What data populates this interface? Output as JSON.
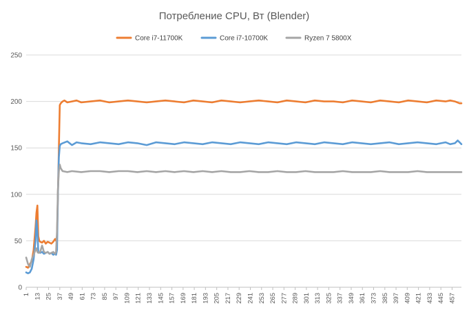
{
  "chart_data": {
    "type": "line",
    "title": "Потребление CPU, Вт (Blender)",
    "xlabel": "",
    "ylabel": "",
    "ylim": [
      0,
      250
    ],
    "yticks": [
      "0",
      "50",
      "100",
      "150",
      "200",
      "250"
    ],
    "xlim": [
      1,
      467
    ],
    "xticks": [
      "1",
      "13",
      "25",
      "37",
      "49",
      "61",
      "73",
      "85",
      "97",
      "109",
      "121",
      "133",
      "145",
      "157",
      "169",
      "181",
      "193",
      "205",
      "217",
      "229",
      "241",
      "253",
      "265",
      "277",
      "289",
      "301",
      "313",
      "325",
      "337",
      "349",
      "361",
      "373",
      "385",
      "397",
      "409",
      "421",
      "433",
      "445",
      "457"
    ],
    "grid": "horizontal",
    "legend_position": "top",
    "series": [
      {
        "name": "Core i7-11700K",
        "color": "#ed7d31",
        "points": [
          [
            1,
            22
          ],
          [
            3,
            21
          ],
          [
            5,
            25
          ],
          [
            7,
            28
          ],
          [
            9,
            40
          ],
          [
            11,
            65
          ],
          [
            12,
            80
          ],
          [
            13,
            88
          ],
          [
            14,
            55
          ],
          [
            15,
            50
          ],
          [
            16,
            49
          ],
          [
            18,
            48
          ],
          [
            20,
            50
          ],
          [
            22,
            47
          ],
          [
            24,
            49
          ],
          [
            26,
            48
          ],
          [
            28,
            47
          ],
          [
            30,
            49
          ],
          [
            32,
            52
          ],
          [
            33,
            50
          ],
          [
            34,
            55
          ],
          [
            35,
            100
          ],
          [
            36,
            150
          ],
          [
            37,
            196
          ],
          [
            38,
            198
          ],
          [
            40,
            200
          ],
          [
            42,
            201
          ],
          [
            45,
            199
          ],
          [
            50,
            200
          ],
          [
            55,
            201
          ],
          [
            60,
            199
          ],
          [
            70,
            200
          ],
          [
            80,
            201
          ],
          [
            90,
            199
          ],
          [
            100,
            200
          ],
          [
            110,
            201
          ],
          [
            120,
            200
          ],
          [
            130,
            199
          ],
          [
            140,
            200
          ],
          [
            150,
            201
          ],
          [
            160,
            200
          ],
          [
            170,
            199
          ],
          [
            180,
            201
          ],
          [
            190,
            200
          ],
          [
            200,
            199
          ],
          [
            210,
            201
          ],
          [
            220,
            200
          ],
          [
            230,
            199
          ],
          [
            240,
            200
          ],
          [
            250,
            201
          ],
          [
            260,
            200
          ],
          [
            270,
            199
          ],
          [
            280,
            201
          ],
          [
            290,
            200
          ],
          [
            300,
            199
          ],
          [
            310,
            201
          ],
          [
            320,
            200
          ],
          [
            330,
            200
          ],
          [
            340,
            199
          ],
          [
            350,
            201
          ],
          [
            360,
            200
          ],
          [
            370,
            199
          ],
          [
            380,
            201
          ],
          [
            390,
            200
          ],
          [
            400,
            199
          ],
          [
            410,
            201
          ],
          [
            420,
            200
          ],
          [
            430,
            199
          ],
          [
            440,
            201
          ],
          [
            450,
            200
          ],
          [
            455,
            201
          ],
          [
            460,
            200
          ],
          [
            465,
            198
          ],
          [
            467,
            198
          ]
        ]
      },
      {
        "name": "Core i7-10700K",
        "color": "#5b9bd5",
        "points": [
          [
            1,
            16
          ],
          [
            3,
            15
          ],
          [
            5,
            16
          ],
          [
            7,
            20
          ],
          [
            9,
            30
          ],
          [
            11,
            50
          ],
          [
            12,
            72
          ],
          [
            13,
            60
          ],
          [
            14,
            38
          ],
          [
            16,
            37
          ],
          [
            18,
            38
          ],
          [
            20,
            36
          ],
          [
            22,
            37
          ],
          [
            24,
            38
          ],
          [
            26,
            36
          ],
          [
            28,
            37
          ],
          [
            30,
            35
          ],
          [
            32,
            36
          ],
          [
            33,
            35
          ],
          [
            34,
            40
          ],
          [
            35,
            100
          ],
          [
            36,
            140
          ],
          [
            37,
            152
          ],
          [
            38,
            154
          ],
          [
            40,
            155
          ],
          [
            45,
            157
          ],
          [
            50,
            153
          ],
          [
            55,
            156
          ],
          [
            60,
            155
          ],
          [
            70,
            154
          ],
          [
            80,
            156
          ],
          [
            90,
            155
          ],
          [
            100,
            154
          ],
          [
            110,
            156
          ],
          [
            120,
            155
          ],
          [
            130,
            153
          ],
          [
            140,
            156
          ],
          [
            150,
            155
          ],
          [
            160,
            154
          ],
          [
            170,
            156
          ],
          [
            180,
            155
          ],
          [
            190,
            154
          ],
          [
            200,
            156
          ],
          [
            210,
            155
          ],
          [
            220,
            154
          ],
          [
            230,
            156
          ],
          [
            240,
            155
          ],
          [
            250,
            154
          ],
          [
            260,
            156
          ],
          [
            270,
            155
          ],
          [
            280,
            154
          ],
          [
            290,
            156
          ],
          [
            300,
            155
          ],
          [
            310,
            154
          ],
          [
            320,
            156
          ],
          [
            330,
            155
          ],
          [
            340,
            154
          ],
          [
            350,
            156
          ],
          [
            360,
            155
          ],
          [
            370,
            154
          ],
          [
            380,
            155
          ],
          [
            390,
            156
          ],
          [
            400,
            154
          ],
          [
            410,
            155
          ],
          [
            420,
            156
          ],
          [
            430,
            155
          ],
          [
            440,
            154
          ],
          [
            450,
            156
          ],
          [
            455,
            154
          ],
          [
            460,
            155
          ],
          [
            463,
            158
          ],
          [
            465,
            156
          ],
          [
            467,
            154
          ]
        ]
      },
      {
        "name": "Ryzen 7 5800X",
        "color": "#a5a5a5",
        "points": [
          [
            1,
            32
          ],
          [
            3,
            25
          ],
          [
            5,
            22
          ],
          [
            7,
            30
          ],
          [
            9,
            35
          ],
          [
            11,
            40
          ],
          [
            12,
            42
          ],
          [
            13,
            38
          ],
          [
            14,
            37
          ],
          [
            16,
            38
          ],
          [
            18,
            45
          ],
          [
            20,
            38
          ],
          [
            22,
            37
          ],
          [
            24,
            38
          ],
          [
            26,
            36
          ],
          [
            28,
            37
          ],
          [
            30,
            38
          ],
          [
            32,
            36
          ],
          [
            33,
            38
          ],
          [
            34,
            60
          ],
          [
            35,
            105
          ],
          [
            36,
            125
          ],
          [
            37,
            132
          ],
          [
            38,
            128
          ],
          [
            40,
            125
          ],
          [
            45,
            124
          ],
          [
            50,
            125
          ],
          [
            60,
            124
          ],
          [
            70,
            125
          ],
          [
            80,
            125
          ],
          [
            90,
            124
          ],
          [
            100,
            125
          ],
          [
            110,
            125
          ],
          [
            120,
            124
          ],
          [
            130,
            125
          ],
          [
            140,
            124
          ],
          [
            150,
            125
          ],
          [
            160,
            124
          ],
          [
            170,
            125
          ],
          [
            180,
            124
          ],
          [
            190,
            125
          ],
          [
            200,
            124
          ],
          [
            210,
            125
          ],
          [
            220,
            124
          ],
          [
            230,
            124
          ],
          [
            240,
            125
          ],
          [
            250,
            124
          ],
          [
            260,
            124
          ],
          [
            270,
            125
          ],
          [
            280,
            124
          ],
          [
            290,
            124
          ],
          [
            300,
            125
          ],
          [
            310,
            124
          ],
          [
            320,
            124
          ],
          [
            330,
            124
          ],
          [
            340,
            125
          ],
          [
            350,
            124
          ],
          [
            360,
            124
          ],
          [
            370,
            124
          ],
          [
            380,
            125
          ],
          [
            390,
            124
          ],
          [
            400,
            124
          ],
          [
            410,
            124
          ],
          [
            420,
            125
          ],
          [
            430,
            124
          ],
          [
            440,
            124
          ],
          [
            450,
            124
          ],
          [
            460,
            124
          ],
          [
            467,
            124
          ]
        ]
      }
    ]
  }
}
